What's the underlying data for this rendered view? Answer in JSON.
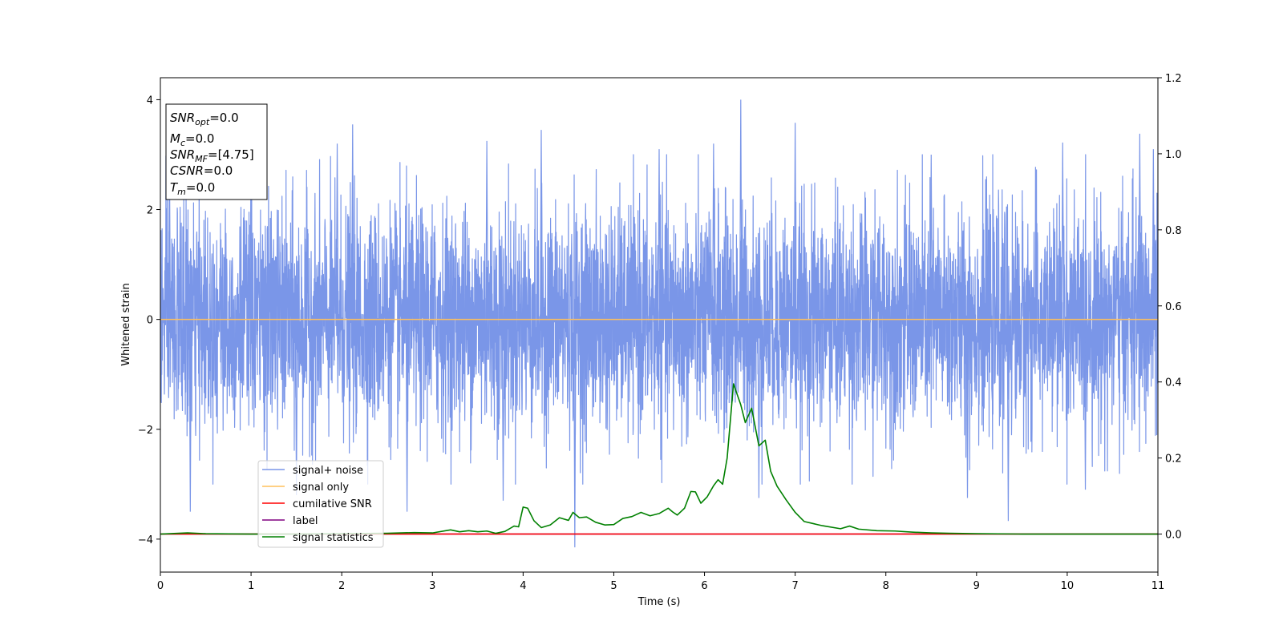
{
  "chart_data": {
    "type": "line",
    "xlabel": "Time (s)",
    "ylabel": "Whitened strain",
    "xlim": [
      0,
      11
    ],
    "ylim_left": [
      -4.6,
      4.4
    ],
    "ylim_right": [
      -0.1,
      1.2
    ],
    "x_ticks": [
      "0",
      "1",
      "2",
      "3",
      "4",
      "5",
      "6",
      "7",
      "8",
      "9",
      "10",
      "11"
    ],
    "y_ticks_left": [
      "−4",
      "−2",
      "0",
      "2",
      "4"
    ],
    "y_ticks_right": [
      "0.0",
      "0.2",
      "0.4",
      "0.6",
      "0.8",
      "1.0",
      "1.2"
    ],
    "colors": {
      "signal_noise": "#7a96e8",
      "signal_only": "#ffc05c",
      "cumulative_snr": "#ff0000",
      "label": "#800080",
      "signal_statistics": "#008000"
    },
    "legend": {
      "placement": "lower-left",
      "entries": [
        "signal+ noise",
        "signal only",
        "cumilative SNR",
        "label",
        "signal statistics"
      ]
    },
    "annotation": {
      "snr_opt": {
        "base": "SNR",
        "sub": "opt",
        "value": "=0.0"
      },
      "mc": {
        "base": "M",
        "sub": "c",
        "value": "=0.0"
      },
      "snr_mf": {
        "base": "SNR",
        "sub": "MF",
        "value": "=[4.75]"
      },
      "csnr": {
        "base": "CSNR",
        "value": "=0.0"
      },
      "tm": {
        "base": "T",
        "sub": "m",
        "value": "=0.0"
      }
    },
    "series": [
      {
        "name": "signal+ noise",
        "axis": "left",
        "description": "whitened strain, gaussian-like noise with std about 1, range roughly -4.15 to 4.0",
        "std": 1.0,
        "peaks": [
          {
            "x": 6.4,
            "y": 4.0
          },
          {
            "x": 4.57,
            "y": -4.15
          },
          {
            "x": 7.0,
            "y": 3.58
          },
          {
            "x": 9.35,
            "y": -3.67
          },
          {
            "x": 0.33,
            "y": -3.5
          },
          {
            "x": 2.72,
            "y": -3.5
          },
          {
            "x": 2.12,
            "y": 3.55
          },
          {
            "x": 4.2,
            "y": 3.45
          },
          {
            "x": 10.8,
            "y": 3.38
          },
          {
            "x": 0.1,
            "y": 3.0
          },
          {
            "x": 1.0,
            "y": 3.2
          },
          {
            "x": 1.95,
            "y": 3.2
          },
          {
            "x": 3.6,
            "y": 3.25
          },
          {
            "x": 5.5,
            "y": 3.1
          },
          {
            "x": 6.1,
            "y": 3.2
          },
          {
            "x": 8.5,
            "y": 3.0
          },
          {
            "x": 9.95,
            "y": 3.22
          },
          {
            "x": 10.95,
            "y": 3.1
          },
          {
            "x": 3.78,
            "y": -3.3
          },
          {
            "x": 8.9,
            "y": -3.25
          },
          {
            "x": 1.5,
            "y": -3.2
          },
          {
            "x": 6.6,
            "y": -3.25
          },
          {
            "x": 10.2,
            "y": -3.1
          }
        ]
      },
      {
        "name": "signal only",
        "axis": "left",
        "x": [
          0,
          11
        ],
        "y": [
          0,
          0
        ]
      },
      {
        "name": "cumilative SNR",
        "axis": "right",
        "x": [
          0,
          11
        ],
        "y": [
          0,
          0
        ]
      },
      {
        "name": "label",
        "axis": "right",
        "x": [
          0,
          11
        ],
        "y": [
          0,
          0
        ]
      },
      {
        "name": "signal statistics",
        "axis": "right",
        "x": [
          0,
          0.3,
          0.5,
          1.0,
          1.5,
          2.0,
          2.5,
          2.8,
          3.0,
          3.2,
          3.3,
          3.4,
          3.5,
          3.6,
          3.7,
          3.8,
          3.9,
          3.95,
          4.0,
          4.05,
          4.12,
          4.2,
          4.3,
          4.4,
          4.5,
          4.55,
          4.62,
          4.7,
          4.8,
          4.9,
          5.0,
          5.1,
          5.2,
          5.3,
          5.4,
          5.5,
          5.6,
          5.65,
          5.7,
          5.78,
          5.85,
          5.9,
          5.96,
          6.03,
          6.1,
          6.15,
          6.2,
          6.25,
          6.32,
          6.4,
          6.45,
          6.52,
          6.6,
          6.67,
          6.73,
          6.8,
          6.9,
          7.0,
          7.1,
          7.3,
          7.5,
          7.6,
          7.7,
          7.9,
          8.1,
          8.3,
          8.5,
          8.7,
          9.0,
          9.5,
          10.0,
          10.5,
          11.0
        ],
        "y": [
          0.0,
          0.003,
          0.001,
          0.0,
          0.0,
          0.001,
          0.002,
          0.004,
          0.003,
          0.011,
          0.006,
          0.009,
          0.006,
          0.008,
          0.002,
          0.007,
          0.021,
          0.019,
          0.071,
          0.068,
          0.035,
          0.017,
          0.024,
          0.043,
          0.036,
          0.057,
          0.043,
          0.045,
          0.031,
          0.024,
          0.025,
          0.041,
          0.046,
          0.057,
          0.048,
          0.054,
          0.068,
          0.058,
          0.05,
          0.068,
          0.112,
          0.111,
          0.081,
          0.098,
          0.127,
          0.143,
          0.131,
          0.2,
          0.395,
          0.34,
          0.293,
          0.331,
          0.232,
          0.247,
          0.165,
          0.126,
          0.09,
          0.057,
          0.033,
          0.022,
          0.014,
          0.021,
          0.013,
          0.009,
          0.008,
          0.005,
          0.003,
          0.002,
          0.001,
          0.0,
          0.0,
          0.0,
          0.0
        ]
      }
    ]
  }
}
